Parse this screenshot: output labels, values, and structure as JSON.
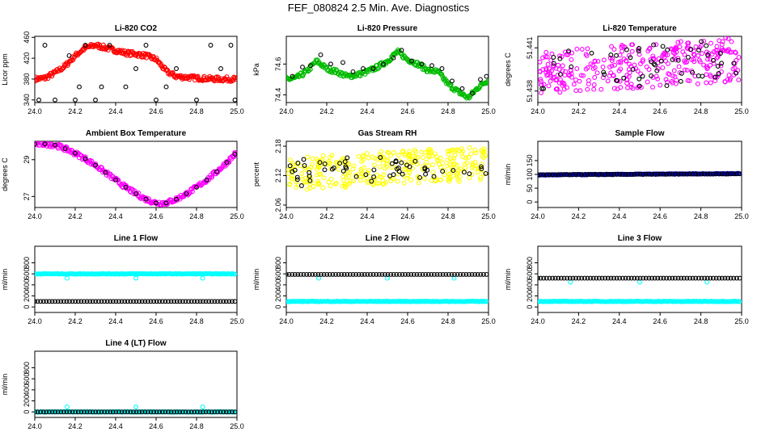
{
  "title": "FEF_080824  2.5 Min. Ave. Diagnostics",
  "colors": {
    "co2": "#ff0000",
    "pressure": "#00bb00",
    "temperature": "#ff00ff",
    "rh": "#ffff00",
    "sample": "#0000cc",
    "lineflow": "#00ffff",
    "reference": "#000000"
  },
  "chart_data": [
    {
      "type": "scatter",
      "title": "Li-820 CO2",
      "ylabel": "Licor ppm",
      "xlim": [
        24.0,
        25.0
      ],
      "ylim": [
        335,
        462
      ],
      "xticks": [
        "24.0",
        "24.2",
        "24.4",
        "24.6",
        "24.8",
        "25.0"
      ],
      "yticks": [
        "340",
        "380",
        "420",
        "460"
      ],
      "ytick_values": [
        340,
        380,
        420,
        460
      ],
      "series": [
        {
          "color_key": "co2",
          "style": "dense",
          "x": [
            24.0,
            24.05,
            24.1,
            24.15,
            24.2,
            24.25,
            24.3,
            24.35,
            24.4,
            24.45,
            24.5,
            24.55,
            24.6,
            24.65,
            24.7,
            24.8,
            24.9,
            24.99
          ],
          "y": [
            380,
            382,
            392,
            405,
            425,
            440,
            445,
            440,
            435,
            430,
            428,
            425,
            418,
            395,
            385,
            382,
            380,
            380
          ]
        },
        {
          "color_key": "reference",
          "style": "sparse",
          "x": [
            24.02,
            24.05,
            24.1,
            24.17,
            24.2,
            24.22,
            24.25,
            24.3,
            24.33,
            24.37,
            24.45,
            24.5,
            24.55,
            24.6,
            24.65,
            24.7,
            24.8,
            24.87,
            24.92,
            24.97,
            24.99
          ],
          "y": [
            340,
            445,
            340,
            425,
            340,
            365,
            445,
            340,
            365,
            445,
            365,
            400,
            445,
            340,
            365,
            400,
            340,
            445,
            400,
            445,
            340
          ]
        }
      ]
    },
    {
      "type": "scatter",
      "title": "Li-820 Pressure",
      "ylabel": "kPa",
      "xlim": [
        24.0,
        25.0
      ],
      "ylim": [
        74.35,
        74.78
      ],
      "xticks": [
        "24.0",
        "24.2",
        "24.4",
        "24.6",
        "24.8",
        "25.0"
      ],
      "yticks": [
        "74.4",
        "74.6"
      ],
      "ytick_values": [
        74.4,
        74.6
      ],
      "series": [
        {
          "color_key": "pressure",
          "style": "dense",
          "x": [
            24.0,
            24.05,
            24.1,
            24.15,
            24.2,
            24.25,
            24.3,
            24.35,
            24.4,
            24.45,
            24.5,
            24.55,
            24.6,
            24.65,
            24.7,
            24.75,
            24.8,
            24.85,
            24.9,
            24.95,
            24.99
          ],
          "y": [
            74.5,
            74.51,
            74.55,
            74.62,
            74.57,
            74.55,
            74.52,
            74.53,
            74.55,
            74.58,
            74.62,
            74.68,
            74.63,
            74.6,
            74.56,
            74.55,
            74.47,
            74.42,
            74.38,
            74.45,
            74.49
          ]
        },
        {
          "color_key": "reference",
          "style": "sparse",
          "x": [
            24.03,
            24.08,
            24.12,
            24.17,
            24.22,
            24.28,
            24.33,
            24.38,
            24.43,
            24.48,
            24.53,
            24.57,
            24.62,
            24.67,
            24.72,
            24.77,
            24.82,
            24.87,
            24.92,
            24.96,
            24.99
          ],
          "y": [
            74.52,
            74.58,
            74.59,
            74.66,
            74.6,
            74.61,
            74.55,
            74.57,
            74.57,
            74.6,
            74.64,
            74.69,
            74.62,
            74.6,
            74.59,
            74.57,
            74.49,
            74.44,
            74.41,
            74.5,
            74.52
          ]
        }
      ]
    },
    {
      "type": "scatter",
      "title": "Li-820 Temperature",
      "ylabel": "degrees C",
      "xlim": [
        24.0,
        25.0
      ],
      "ylim": [
        51.4372,
        51.4418
      ],
      "xticks": [
        "24.0",
        "24.2",
        "24.4",
        "24.6",
        "24.8",
        "25.0"
      ],
      "yticks": [
        "51.438",
        "51.441"
      ],
      "ytick_values": [
        51.438,
        51.441
      ],
      "series": [
        {
          "color_key": "temperature",
          "style": "noise",
          "x": [
            24.0,
            24.99
          ],
          "y": [
            51.4382,
            51.4413
          ]
        },
        {
          "color_key": "reference",
          "style": "noisesparse",
          "x": [
            24.0,
            24.99
          ],
          "y": [
            51.4382,
            51.4412
          ]
        }
      ]
    },
    {
      "type": "scatter",
      "title": "Ambient Box Temperature",
      "ylabel": "degrees C",
      "xlim": [
        24.0,
        25.0
      ],
      "ylim": [
        26.4,
        30.0
      ],
      "xticks": [
        "24.0",
        "24.2",
        "24.4",
        "24.6",
        "24.8",
        "25.0"
      ],
      "yticks": [
        "27",
        "29"
      ],
      "ytick_values": [
        27,
        29
      ],
      "series": [
        {
          "color_key": "temperature",
          "style": "dense",
          "x": [
            24.0,
            24.05,
            24.1,
            24.15,
            24.2,
            24.25,
            24.3,
            24.35,
            24.4,
            24.45,
            24.5,
            24.55,
            24.6,
            24.65,
            24.7,
            24.75,
            24.8,
            24.85,
            24.9,
            24.95,
            24.99
          ],
          "y": [
            29.85,
            29.86,
            29.8,
            29.6,
            29.35,
            29.05,
            28.7,
            28.3,
            27.9,
            27.5,
            27.15,
            26.85,
            26.65,
            26.65,
            26.85,
            27.15,
            27.5,
            27.9,
            28.35,
            28.85,
            29.3
          ]
        },
        {
          "color_key": "reference",
          "style": "sparse",
          "x": [
            24.0,
            24.05,
            24.1,
            24.15,
            24.2,
            24.25,
            24.3,
            24.35,
            24.4,
            24.45,
            24.5,
            24.55,
            24.6,
            24.65,
            24.7,
            24.75,
            24.8,
            24.85,
            24.9,
            24.95,
            24.99
          ],
          "y": [
            29.85,
            29.86,
            29.8,
            29.6,
            29.35,
            29.05,
            28.7,
            28.3,
            27.9,
            27.5,
            27.15,
            26.85,
            26.65,
            26.65,
            26.85,
            27.15,
            27.5,
            27.9,
            28.35,
            28.85,
            29.3
          ]
        }
      ]
    },
    {
      "type": "scatter",
      "title": "Gas Stream RH",
      "ylabel": "percent",
      "xlim": [
        24.0,
        25.0
      ],
      "ylim": [
        2.055,
        2.19
      ],
      "xticks": [
        "24.0",
        "24.2",
        "24.4",
        "24.6",
        "24.8",
        "25.0"
      ],
      "yticks": [
        "2.06",
        "2.12",
        "2.18"
      ],
      "ytick_values": [
        2.06,
        2.12,
        2.18
      ],
      "series": [
        {
          "color_key": "rh",
          "style": "noise",
          "x": [
            24.0,
            24.99
          ],
          "y": [
            2.1,
            2.17
          ]
        },
        {
          "color_key": "reference",
          "style": "noisesparse",
          "x": [
            24.0,
            24.99
          ],
          "y": [
            2.105,
            2.16
          ]
        }
      ]
    },
    {
      "type": "scatter",
      "title": "Sample Flow",
      "ylabel": "ml/min",
      "xlim": [
        24.0,
        25.0
      ],
      "ylim": [
        -20,
        220
      ],
      "xticks": [
        "24.0",
        "24.2",
        "24.4",
        "24.6",
        "24.8",
        "25.0"
      ],
      "yticks": [
        "0",
        "50",
        "100",
        "150"
      ],
      "ytick_values": [
        0,
        50,
        100,
        150
      ],
      "series": [
        {
          "color_key": "sample",
          "style": "flat",
          "x": [
            24.0,
            24.99
          ],
          "y": [
            98,
            103
          ]
        },
        {
          "color_key": "reference",
          "style": "flatsparse",
          "x": [
            24.0,
            24.99
          ],
          "y": [
            99,
            102
          ]
        }
      ]
    },
    {
      "type": "scatter",
      "title": "Line 1 Flow",
      "ylabel": "ml/min",
      "xlim": [
        24.0,
        25.0
      ],
      "ylim": [
        -100,
        1100
      ],
      "xticks": [
        "24.0",
        "24.2",
        "24.4",
        "24.6",
        "24.8",
        "25.0"
      ],
      "yticks": [
        "0",
        "200",
        "400",
        "600",
        "800"
      ],
      "ytick_values": [
        0,
        200,
        400,
        600,
        800
      ],
      "series": [
        {
          "color_key": "lineflow",
          "style": "flat",
          "x": [
            24.0,
            24.99
          ],
          "y": [
            600,
            600
          ]
        },
        {
          "color_key": "lineflow",
          "style": "outliers",
          "x": [
            24.16,
            24.5,
            24.83
          ],
          "y": [
            520,
            520,
            520
          ]
        },
        {
          "color_key": "reference",
          "style": "flatsparse",
          "x": [
            24.0,
            24.99
          ],
          "y": [
            100,
            100
          ]
        }
      ]
    },
    {
      "type": "scatter",
      "title": "Line 2 Flow",
      "ylabel": "ml/min",
      "xlim": [
        24.0,
        25.0
      ],
      "ylim": [
        -100,
        1100
      ],
      "xticks": [
        "24.0",
        "24.2",
        "24.4",
        "24.6",
        "24.8",
        "25.0"
      ],
      "yticks": [
        "0",
        "200",
        "400",
        "600",
        "800"
      ],
      "ytick_values": [
        0,
        200,
        400,
        600,
        800
      ],
      "series": [
        {
          "color_key": "lineflow",
          "style": "flat",
          "x": [
            24.0,
            24.99
          ],
          "y": [
            100,
            100
          ]
        },
        {
          "color_key": "lineflow",
          "style": "outliers",
          "x": [
            24.0,
            24.16,
            24.5,
            24.83
          ],
          "y": [
            590,
            520,
            520,
            520
          ]
        },
        {
          "color_key": "reference",
          "style": "flatsparse",
          "x": [
            24.0,
            24.99
          ],
          "y": [
            590,
            590
          ]
        }
      ]
    },
    {
      "type": "scatter",
      "title": "Line 3 Flow",
      "ylabel": "ml/min",
      "xlim": [
        24.0,
        25.0
      ],
      "ylim": [
        -100,
        1100
      ],
      "xticks": [
        "24.0",
        "24.2",
        "24.4",
        "24.6",
        "24.8",
        "25.0"
      ],
      "yticks": [
        "0",
        "200",
        "400",
        "600",
        "800"
      ],
      "ytick_values": [
        0,
        200,
        400,
        600,
        800
      ],
      "series": [
        {
          "color_key": "lineflow",
          "style": "flat",
          "x": [
            24.0,
            24.99
          ],
          "y": [
            100,
            100
          ]
        },
        {
          "color_key": "lineflow",
          "style": "outliers",
          "x": [
            24.0,
            24.16,
            24.5,
            24.83
          ],
          "y": [
            520,
            450,
            450,
            450
          ]
        },
        {
          "color_key": "reference",
          "style": "flatsparse",
          "x": [
            24.0,
            24.99
          ],
          "y": [
            520,
            520
          ]
        }
      ]
    },
    {
      "type": "scatter",
      "title": "Line 4 (LT) Flow",
      "ylabel": "ml/min",
      "xlim": [
        24.0,
        25.0
      ],
      "ylim": [
        -100,
        1100
      ],
      "xticks": [
        "24.0",
        "24.2",
        "24.4",
        "24.6",
        "24.8",
        "25.0"
      ],
      "yticks": [
        "0",
        "200",
        "400",
        "600",
        "800"
      ],
      "ytick_values": [
        0,
        200,
        400,
        600,
        800
      ],
      "series": [
        {
          "color_key": "lineflow",
          "style": "flat",
          "x": [
            24.0,
            24.99
          ],
          "y": [
            0,
            0
          ]
        },
        {
          "color_key": "lineflow",
          "style": "outliers",
          "x": [
            24.16,
            24.5,
            24.83
          ],
          "y": [
            90,
            90,
            90
          ]
        },
        {
          "color_key": "reference",
          "style": "flatsparse",
          "x": [
            24.0,
            24.99
          ],
          "y": [
            0,
            0
          ]
        }
      ]
    }
  ]
}
